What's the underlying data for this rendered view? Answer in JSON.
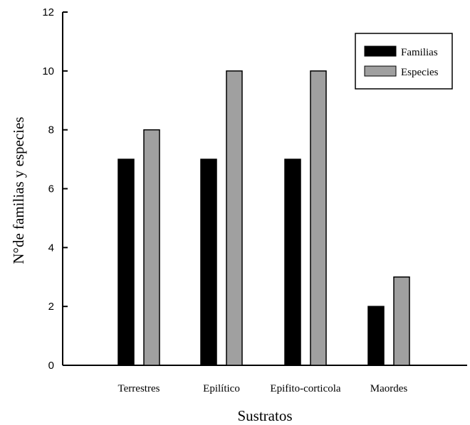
{
  "chart_data": {
    "type": "bar",
    "categories": [
      "Terrestres",
      "Epilítico",
      "Epifito-corticola",
      "Maordes"
    ],
    "series": [
      {
        "name": "Familias",
        "values": [
          7,
          7,
          7,
          2
        ],
        "color": "#000000"
      },
      {
        "name": "Especies",
        "values": [
          8,
          10,
          10,
          3
        ],
        "color": "#a0a0a0"
      }
    ],
    "xlabel": "Sustratos",
    "ylabel": "N°de familias y especies",
    "ylim": [
      0,
      12
    ],
    "yticks": [
      0,
      2,
      4,
      6,
      8,
      10,
      12
    ],
    "grid": false,
    "legend_position": "top-right"
  }
}
